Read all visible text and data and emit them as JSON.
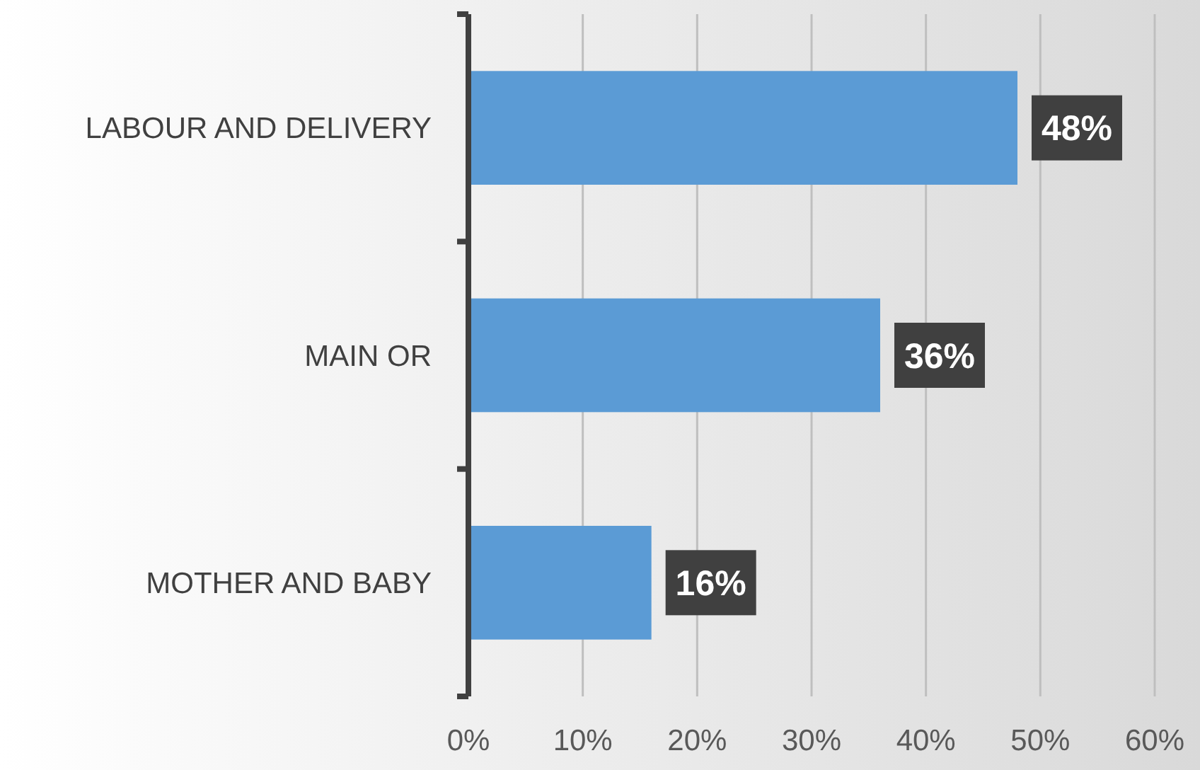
{
  "chart_data": {
    "type": "bar",
    "orientation": "horizontal",
    "categories": [
      "LABOUR AND DELIVERY",
      "MAIN OR",
      "MOTHER AND BABY"
    ],
    "values": [
      48,
      36,
      16
    ],
    "color": "#5b9bd5",
    "xlim": [
      0,
      60
    ],
    "xticks": [
      {
        "value": 0,
        "label": "0%"
      },
      {
        "value": 10,
        "label": "10%"
      },
      {
        "value": 20,
        "label": "20%"
      },
      {
        "value": 30,
        "label": "30%"
      },
      {
        "value": 40,
        "label": "40%"
      },
      {
        "value": 50,
        "label": "50%"
      },
      {
        "value": 60,
        "label": "60%"
      }
    ],
    "value_labels": [
      "48%",
      "36%",
      "16%"
    ],
    "grid": "x"
  }
}
